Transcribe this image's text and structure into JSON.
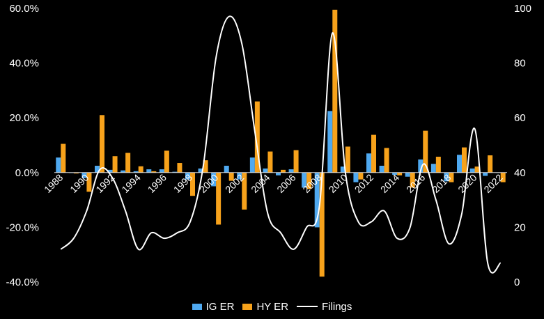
{
  "chart_data": {
    "type": "bar",
    "x": [
      1988,
      1989,
      1990,
      1991,
      1992,
      1993,
      1994,
      1995,
      1996,
      1997,
      1998,
      1999,
      2000,
      2001,
      2002,
      2003,
      2004,
      2005,
      2006,
      2007,
      2008,
      2009,
      2010,
      2011,
      2012,
      2013,
      2014,
      2015,
      2016,
      2017,
      2018,
      2019,
      2020,
      2021,
      2022
    ],
    "x_tick_labels": [
      "1988",
      "1990",
      "1992",
      "1994",
      "1996",
      "1998",
      "2000",
      "2002",
      "2004",
      "2006",
      "2008",
      "2010",
      "2012",
      "2014",
      "2016",
      "2018",
      "2020",
      "2022"
    ],
    "series": [
      {
        "name": "IG ER",
        "kind": "bar",
        "axis": "left",
        "color": "#4fa9f0",
        "values": [
          5.5,
          0.0,
          -2.0,
          2.5,
          1.0,
          0.8,
          0.5,
          1.2,
          1.2,
          0.3,
          -2.5,
          1.5,
          -5.0,
          2.5,
          -2.5,
          5.5,
          1.5,
          -1.0,
          1.2,
          -5.5,
          -20.0,
          22.5,
          2.2,
          -3.5,
          7.0,
          2.5,
          -0.8,
          -1.5,
          4.8,
          3.2,
          -3.2,
          6.5,
          1.5,
          -1.2,
          0.0
        ]
      },
      {
        "name": "HY ER",
        "kind": "bar",
        "axis": "left",
        "color": "#f7a21b",
        "values": [
          10.5,
          -0.3,
          -7.0,
          21.0,
          6.0,
          7.2,
          2.3,
          0.5,
          8.0,
          3.5,
          -8.5,
          4.5,
          -19.0,
          -3.0,
          -13.5,
          26.0,
          7.7,
          1.0,
          8.2,
          -6.0,
          -38.0,
          59.5,
          9.5,
          -2.5,
          13.8,
          9.0,
          -1.0,
          -5.5,
          15.3,
          5.8,
          -3.5,
          9.2,
          2.2,
          6.3,
          -3.5
        ]
      },
      {
        "name": "Filings",
        "kind": "line",
        "axis": "right",
        "color": "#ffffff",
        "values": [
          12,
          16,
          26,
          41,
          38,
          26,
          12,
          18,
          16,
          18,
          22,
          42,
          82,
          97,
          87,
          55,
          25,
          18,
          12,
          20,
          28,
          91,
          40,
          22,
          22,
          26,
          16,
          20,
          43,
          30,
          14,
          25,
          56,
          7,
          7
        ]
      }
    ],
    "y_left": {
      "min": -40,
      "max": 60,
      "ticks": [
        "-40.0%",
        "-20.0%",
        "0.0%",
        "20.0%",
        "40.0%",
        "60.0%"
      ]
    },
    "y_right": {
      "min": 0,
      "max": 100,
      "ticks": [
        "0",
        "20",
        "40",
        "60",
        "80",
        "100"
      ]
    },
    "grid": false,
    "legend_position": "bottom"
  },
  "legend": {
    "ig": "IG ER",
    "hy": "HY ER",
    "filings": "Filings"
  }
}
